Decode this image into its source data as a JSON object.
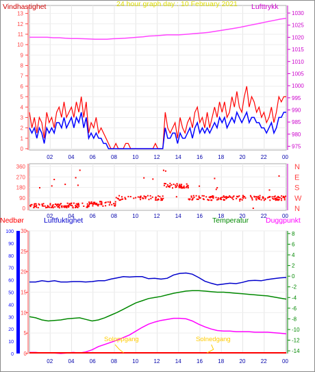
{
  "header": {
    "left_title": "Vindhastighet",
    "center_title": "24 hour graph day : 10 February 2021",
    "right_title": "Lufttrykk"
  },
  "colors": {
    "wind": "#ff0000",
    "wind_avg": "#0000ff",
    "pressure": "#ff44ff",
    "direction": "#ff0000",
    "humidity": "#0000cc",
    "temperature": "#008800",
    "dewpoint": "#ff00ff",
    "rain": "#ff0000",
    "sun": "#ffcc00",
    "left_axis": "#ff4444",
    "right_axis": "#cc00cc",
    "temp_axis": "#008800",
    "humidity_axis": "#0000ff",
    "title_red": "#cc0000",
    "title_yellow": "#dddd00"
  },
  "chart_data": [
    {
      "type": "line",
      "name_left": "Vindhastighet",
      "name_right": "Lufttrykk",
      "x_ticks": [
        "02",
        "04",
        "06",
        "08",
        "10",
        "12",
        "14",
        "16",
        "18",
        "20",
        "22",
        "00"
      ],
      "y_left_ticks": [
        0,
        1,
        2,
        3,
        4,
        5,
        6,
        7,
        8,
        9,
        10,
        11,
        12,
        13
      ],
      "y_left_range": [
        0,
        13.5
      ],
      "y_right_ticks": [
        975,
        980,
        985,
        990,
        995,
        1000,
        1005,
        1010,
        1015,
        1020,
        1025,
        1030
      ],
      "y_right_range": [
        974,
        1032
      ],
      "wind_gust": [
        3.5,
        2,
        3,
        1.5,
        3,
        2.5,
        1,
        3.5,
        2.5,
        3,
        2,
        3.5,
        4,
        3,
        4.5,
        3,
        3.5,
        4,
        3,
        4.5,
        3.5,
        5,
        3,
        4.5,
        1.5,
        2.5,
        2,
        3,
        1.5,
        2,
        1.5,
        1,
        0.5,
        0,
        0,
        0.5,
        0,
        0,
        0,
        0.5,
        0.5,
        0,
        0,
        0,
        0,
        0,
        0,
        0,
        0,
        0,
        0,
        0.5,
        0,
        0,
        0,
        3.5,
        2,
        1.5,
        2,
        2.5,
        1,
        3,
        2,
        1.5,
        2.5,
        3,
        2,
        3.5,
        4,
        2.5,
        3,
        2,
        3.5,
        2,
        3,
        4,
        3,
        4.5,
        3.5,
        4.5,
        3,
        3.5,
        5,
        4,
        5.5,
        4,
        3.5,
        5,
        6,
        4,
        5,
        4.5,
        3.5,
        4,
        3,
        3.5,
        2.5,
        3,
        4,
        2.5,
        3.5,
        5,
        4.5,
        5,
        5
      ],
      "wind_avg": [
        2,
        1.5,
        2,
        1,
        2,
        1.5,
        0.5,
        2,
        1.5,
        2,
        1.5,
        2.5,
        2.5,
        2,
        3,
        2,
        2.5,
        3,
        2,
        3,
        2.5,
        3.5,
        2,
        3,
        1,
        1.5,
        1,
        1.5,
        1,
        1,
        0.5,
        0.5,
        0,
        0,
        0,
        0,
        0,
        0,
        0,
        0,
        0,
        0,
        0,
        0,
        0,
        0,
        0,
        0,
        0,
        0,
        0,
        0,
        0,
        0,
        0,
        2,
        1,
        1,
        1.5,
        1.5,
        0.5,
        1.5,
        1,
        1,
        1.5,
        2,
        1,
        2,
        2.5,
        1.5,
        2,
        1.5,
        2,
        1.5,
        2,
        2.5,
        2,
        3,
        2.5,
        3,
        2,
        2.5,
        3,
        2.5,
        3.5,
        3,
        2.5,
        3,
        3.5,
        2.5,
        3,
        3,
        2.5,
        2.5,
        2,
        2,
        1.5,
        2,
        2.5,
        1.5,
        2,
        3,
        3,
        3.5,
        3.5
      ],
      "pressure": [
        1020,
        1020,
        1020,
        1020,
        1019.8,
        1019.8,
        1019.6,
        1019.5,
        1019.5,
        1019.4,
        1019.3,
        1019.2,
        1019.2,
        1019.2,
        1019.4,
        1019.5,
        1019.6,
        1019.8,
        1020,
        1020.2,
        1020.5,
        1020.6,
        1020.8,
        1021,
        1021,
        1021,
        1021.2,
        1021.4,
        1021.6,
        1021.8,
        1022,
        1022.4,
        1022.8,
        1023.2,
        1023.6,
        1024,
        1024.5,
        1025,
        1025.5,
        1026,
        1026.5,
        1027,
        1027.5,
        1027.8
      ]
    },
    {
      "type": "scatter",
      "name": "Vindretning",
      "y_ticks_left": [
        0,
        90,
        180,
        270,
        360
      ],
      "y_ticks_right": [
        "N",
        "W",
        "S",
        "E",
        "N"
      ],
      "y_range": [
        0,
        360
      ],
      "x_ticks": [
        "02",
        "04",
        "06",
        "08",
        "10",
        "12",
        "14",
        "16",
        "18",
        "20",
        "22",
        "00"
      ]
    },
    {
      "type": "line",
      "legend": [
        "Nedbør",
        "Luftfuktighet",
        "Temperatur",
        "Duggpunkt"
      ],
      "y_rain_ticks": [
        0,
        10,
        20,
        30,
        40,
        50,
        60,
        70,
        80,
        90,
        100
      ],
      "y_rain_range": [
        0,
        100
      ],
      "y_humidity_ticks": [
        0,
        5,
        10,
        15,
        20,
        25,
        30
      ],
      "y_humidity_range": [
        0,
        30
      ],
      "y_temp_ticks": [
        -14,
        -12,
        -10,
        -8,
        -6,
        -4,
        -2,
        0,
        2,
        4,
        6,
        8
      ],
      "y_temp_range": [
        -14.5,
        8.5
      ],
      "x_ticks": [
        "02",
        "04",
        "06",
        "08",
        "10",
        "12",
        "14",
        "16",
        "18",
        "20",
        "22",
        "00"
      ],
      "humidity": [
        17.5,
        17.5,
        17.8,
        17.6,
        17.8,
        17.5,
        17.5,
        17.6,
        17.6,
        17.5,
        17.6,
        17.8,
        17.8,
        18.2,
        18.5,
        18.8,
        18.7,
        18.8,
        18.8,
        18.3,
        18.4,
        18.2,
        18.4,
        19.2,
        19.6,
        19.7,
        19.4,
        18.6,
        17.7,
        17.2,
        16.8,
        17,
        17.2,
        17.1,
        17.4,
        17.8,
        17.9,
        17.8,
        18.1,
        18.3,
        18.5,
        18.6
      ],
      "temperature": [
        -7.6,
        -7.8,
        -8.2,
        -8.4,
        -8.3,
        -8.2,
        -8,
        -7.9,
        -7.8,
        -8.1,
        -8.4,
        -8.2,
        -7.8,
        -7.3,
        -6.8,
        -6.2,
        -5.6,
        -5,
        -4.6,
        -4.2,
        -4,
        -3.8,
        -3.5,
        -3.2,
        -3,
        -2.8,
        -2.7,
        -2.7,
        -2.8,
        -2.9,
        -3,
        -3,
        -3.1,
        -3.2,
        -3.3,
        -3.4,
        -3.5,
        -3.6,
        -3.7,
        -3.9,
        -4.1,
        -4.3
      ],
      "dewpoint": [
        -14.3,
        -14.3,
        -14.4,
        -14.4,
        -14.4,
        -14.5,
        -14.4,
        -14.3,
        -14.4,
        -14.2,
        -13.8,
        -13.2,
        -12.8,
        -12.4,
        -12,
        -11.5,
        -11,
        -10.3,
        -9.6,
        -9,
        -8.6,
        -8.3,
        -8.1,
        -7.9,
        -7.9,
        -8,
        -8.4,
        -9,
        -9.5,
        -9.9,
        -10.2,
        -10.3,
        -10.3,
        -10.4,
        -10.4,
        -10.4,
        -10.5,
        -10.5,
        -10.5,
        -10.6,
        -10.7,
        -10.8
      ],
      "sun_labels": {
        "sunrise": "Soloppgang",
        "sunset": "Solnedgang"
      }
    }
  ]
}
